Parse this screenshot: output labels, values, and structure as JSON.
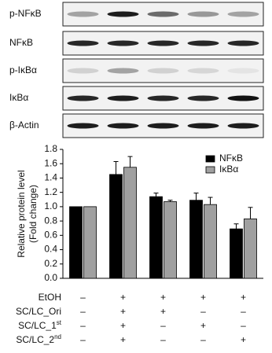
{
  "blot": {
    "rows": [
      "p-NFκB",
      "NFκB",
      "p-IκBα",
      "IκBα",
      "β-Actin"
    ]
  },
  "chart_data": {
    "type": "bar",
    "y_label": [
      "Relative protein level",
      "(Fold change)"
    ],
    "categories": [
      null,
      null,
      null,
      null,
      null
    ],
    "series": [
      {
        "name": "NFκB",
        "color": "#000000",
        "values": [
          1.0,
          1.45,
          1.14,
          1.09,
          0.69
        ],
        "errors": [
          0,
          0.18,
          0.05,
          0.1,
          0.07
        ]
      },
      {
        "name": "IκBα",
        "color": "#a0a0a0",
        "values": [
          1.0,
          1.55,
          1.07,
          1.03,
          0.83
        ],
        "errors": [
          0,
          0.15,
          0.02,
          0.1,
          0.16
        ]
      }
    ],
    "ylim": [
      0,
      1.8
    ],
    "yticks": [
      {
        "value": 0,
        "label": "0.0"
      },
      0.2,
      0.4,
      0.6,
      0.8,
      {
        "value": 1,
        "label": "1.0"
      },
      1.2,
      1.4,
      1.6,
      1.8
    ],
    "legend": "upper right"
  },
  "treatments": {
    "rows": [
      {
        "label": {
          "base": "EtOH"
        },
        "cells": [
          "–",
          "+",
          "+",
          "+",
          "+"
        ]
      },
      {
        "label": {
          "base": "SC/LC_Ori"
        },
        "cells": [
          "–",
          "+",
          "+",
          "–",
          "–"
        ]
      },
      {
        "label": {
          "base": "SC/LC_1",
          "sup": "st"
        },
        "cells": [
          "–",
          "+",
          "–",
          "+",
          "–"
        ]
      },
      {
        "label": {
          "base": "SC/LC_2",
          "sup": "nd"
        },
        "cells": [
          "–",
          "+",
          "–",
          "–",
          "+"
        ]
      }
    ]
  }
}
